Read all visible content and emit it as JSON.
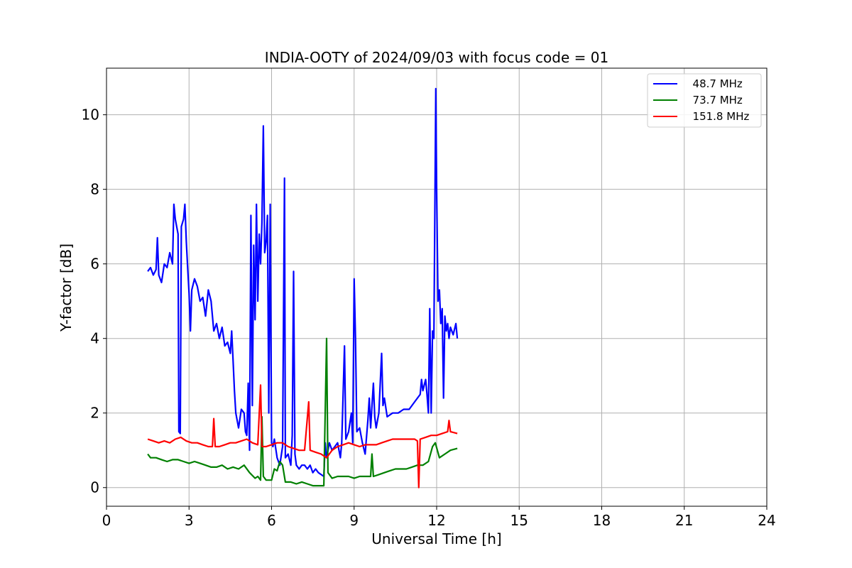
{
  "chart_data": {
    "type": "line",
    "title": "INDIA-OOTY of 2024/09/03 with focus code = 01",
    "xlabel": "Universal Time [h]",
    "ylabel": "Y-factor [dB]",
    "xlim": [
      0,
      24
    ],
    "ylim": [
      -0.5,
      11.25
    ],
    "xticks": [
      0,
      3,
      6,
      9,
      12,
      15,
      18,
      21,
      24
    ],
    "yticks": [
      0,
      2,
      4,
      6,
      8,
      10
    ],
    "grid": true,
    "legend_position": "top-right",
    "series": [
      {
        "name": "  48.7 MHz",
        "color": "#0000ff",
        "points": [
          [
            1.5,
            5.8
          ],
          [
            1.6,
            5.9
          ],
          [
            1.7,
            5.7
          ],
          [
            1.8,
            5.85
          ],
          [
            1.85,
            6.7
          ],
          [
            1.9,
            5.7
          ],
          [
            2.0,
            5.5
          ],
          [
            2.1,
            6.0
          ],
          [
            2.2,
            5.9
          ],
          [
            2.3,
            6.3
          ],
          [
            2.4,
            6.0
          ],
          [
            2.45,
            7.6
          ],
          [
            2.5,
            7.2
          ],
          [
            2.6,
            6.8
          ],
          [
            2.63,
            1.5
          ],
          [
            2.68,
            1.45
          ],
          [
            2.72,
            7.0
          ],
          [
            2.8,
            7.2
          ],
          [
            2.85,
            7.6
          ],
          [
            2.9,
            6.6
          ],
          [
            2.95,
            5.9
          ],
          [
            3.0,
            5.2
          ],
          [
            3.05,
            4.2
          ],
          [
            3.1,
            5.3
          ],
          [
            3.2,
            5.6
          ],
          [
            3.3,
            5.4
          ],
          [
            3.4,
            5.0
          ],
          [
            3.5,
            5.1
          ],
          [
            3.6,
            4.6
          ],
          [
            3.7,
            5.3
          ],
          [
            3.8,
            5.0
          ],
          [
            3.9,
            4.2
          ],
          [
            4.0,
            4.4
          ],
          [
            4.1,
            4.0
          ],
          [
            4.2,
            4.3
          ],
          [
            4.3,
            3.8
          ],
          [
            4.4,
            3.9
          ],
          [
            4.5,
            3.6
          ],
          [
            4.55,
            4.2
          ],
          [
            4.6,
            3.4
          ],
          [
            4.65,
            2.6
          ],
          [
            4.7,
            2.0
          ],
          [
            4.8,
            1.6
          ],
          [
            4.9,
            2.1
          ],
          [
            5.0,
            2.0
          ],
          [
            5.05,
            1.5
          ],
          [
            5.1,
            1.4
          ],
          [
            5.15,
            2.8
          ],
          [
            5.2,
            1.0
          ],
          [
            5.25,
            7.3
          ],
          [
            5.3,
            2.2
          ],
          [
            5.35,
            6.5
          ],
          [
            5.4,
            4.5
          ],
          [
            5.45,
            7.6
          ],
          [
            5.5,
            5.0
          ],
          [
            5.55,
            6.8
          ],
          [
            5.6,
            6.0
          ],
          [
            5.65,
            7.1
          ],
          [
            5.7,
            9.7
          ],
          [
            5.75,
            6.3
          ],
          [
            5.8,
            6.6
          ],
          [
            5.85,
            7.3
          ],
          [
            5.9,
            2.0
          ],
          [
            5.95,
            7.6
          ],
          [
            6.0,
            1.2
          ],
          [
            6.05,
            1.1
          ],
          [
            6.1,
            1.3
          ],
          [
            6.2,
            0.8
          ],
          [
            6.3,
            0.6
          ],
          [
            6.4,
            1.1
          ],
          [
            6.47,
            8.3
          ],
          [
            6.5,
            0.8
          ],
          [
            6.6,
            0.9
          ],
          [
            6.7,
            0.6
          ],
          [
            6.75,
            1.4
          ],
          [
            6.8,
            5.8
          ],
          [
            6.85,
            0.9
          ],
          [
            6.9,
            0.6
          ],
          [
            7.0,
            0.5
          ],
          [
            7.1,
            0.6
          ],
          [
            7.2,
            0.6
          ],
          [
            7.3,
            0.5
          ],
          [
            7.4,
            0.6
          ],
          [
            7.5,
            0.4
          ],
          [
            7.6,
            0.5
          ],
          [
            7.7,
            0.4
          ],
          [
            7.8,
            0.35
          ],
          [
            7.9,
            0.3
          ],
          [
            7.95,
            1.2
          ],
          [
            8.0,
            0.8
          ],
          [
            8.1,
            1.2
          ],
          [
            8.2,
            1.0
          ],
          [
            8.3,
            1.1
          ],
          [
            8.4,
            1.2
          ],
          [
            8.5,
            0.8
          ],
          [
            8.55,
            1.2
          ],
          [
            8.65,
            3.8
          ],
          [
            8.7,
            1.3
          ],
          [
            8.8,
            1.5
          ],
          [
            8.9,
            2.0
          ],
          [
            8.95,
            1.2
          ],
          [
            9.0,
            5.6
          ],
          [
            9.05,
            4.0
          ],
          [
            9.1,
            1.5
          ],
          [
            9.2,
            1.6
          ],
          [
            9.3,
            1.2
          ],
          [
            9.4,
            0.9
          ],
          [
            9.5,
            1.8
          ],
          [
            9.55,
            2.4
          ],
          [
            9.6,
            1.6
          ],
          [
            9.7,
            2.8
          ],
          [
            9.75,
            1.9
          ],
          [
            9.8,
            1.6
          ],
          [
            9.9,
            2.0
          ],
          [
            10.0,
            3.6
          ],
          [
            10.05,
            2.2
          ],
          [
            10.1,
            2.4
          ],
          [
            10.2,
            1.9
          ],
          [
            10.4,
            2.0
          ],
          [
            10.6,
            2.0
          ],
          [
            10.8,
            2.1
          ],
          [
            11.0,
            2.1
          ],
          [
            11.2,
            2.3
          ],
          [
            11.4,
            2.5
          ],
          [
            11.45,
            2.9
          ],
          [
            11.5,
            2.6
          ],
          [
            11.6,
            2.9
          ],
          [
            11.65,
            2.5
          ],
          [
            11.7,
            2.0
          ],
          [
            11.75,
            4.8
          ],
          [
            11.8,
            2.0
          ],
          [
            11.85,
            4.2
          ],
          [
            11.9,
            4.0
          ],
          [
            11.97,
            10.7
          ],
          [
            12.0,
            8.0
          ],
          [
            12.05,
            5.0
          ],
          [
            12.1,
            5.3
          ],
          [
            12.15,
            4.4
          ],
          [
            12.2,
            4.8
          ],
          [
            12.25,
            2.4
          ],
          [
            12.3,
            4.6
          ],
          [
            12.35,
            4.2
          ],
          [
            12.4,
            4.4
          ],
          [
            12.45,
            4.0
          ],
          [
            12.5,
            4.3
          ],
          [
            12.6,
            4.1
          ],
          [
            12.7,
            4.4
          ],
          [
            12.75,
            4.0
          ]
        ]
      },
      {
        "name": "  73.7 MHz",
        "color": "#008000",
        "points": [
          [
            1.5,
            0.9
          ],
          [
            1.6,
            0.8
          ],
          [
            1.8,
            0.8
          ],
          [
            2.0,
            0.75
          ],
          [
            2.2,
            0.7
          ],
          [
            2.4,
            0.75
          ],
          [
            2.6,
            0.75
          ],
          [
            2.8,
            0.7
          ],
          [
            3.0,
            0.65
          ],
          [
            3.2,
            0.7
          ],
          [
            3.4,
            0.65
          ],
          [
            3.6,
            0.6
          ],
          [
            3.8,
            0.55
          ],
          [
            4.0,
            0.55
          ],
          [
            4.2,
            0.6
          ],
          [
            4.4,
            0.5
          ],
          [
            4.6,
            0.55
          ],
          [
            4.8,
            0.5
          ],
          [
            5.0,
            0.6
          ],
          [
            5.2,
            0.4
          ],
          [
            5.4,
            0.25
          ],
          [
            5.5,
            0.3
          ],
          [
            5.6,
            0.2
          ],
          [
            5.65,
            1.9
          ],
          [
            5.7,
            0.3
          ],
          [
            5.8,
            0.2
          ],
          [
            6.0,
            0.2
          ],
          [
            6.1,
            0.5
          ],
          [
            6.2,
            0.45
          ],
          [
            6.3,
            0.7
          ],
          [
            6.4,
            0.6
          ],
          [
            6.5,
            0.15
          ],
          [
            6.7,
            0.15
          ],
          [
            6.9,
            0.1
          ],
          [
            7.1,
            0.15
          ],
          [
            7.3,
            0.1
          ],
          [
            7.5,
            0.05
          ],
          [
            7.7,
            0.05
          ],
          [
            7.9,
            0.05
          ],
          [
            8.0,
            4.0
          ],
          [
            8.05,
            0.4
          ],
          [
            8.2,
            0.25
          ],
          [
            8.4,
            0.3
          ],
          [
            8.6,
            0.3
          ],
          [
            8.8,
            0.3
          ],
          [
            9.0,
            0.25
          ],
          [
            9.2,
            0.3
          ],
          [
            9.4,
            0.3
          ],
          [
            9.6,
            0.3
          ],
          [
            9.65,
            0.9
          ],
          [
            9.7,
            0.3
          ],
          [
            9.9,
            0.35
          ],
          [
            10.1,
            0.4
          ],
          [
            10.3,
            0.45
          ],
          [
            10.5,
            0.5
          ],
          [
            10.7,
            0.5
          ],
          [
            10.9,
            0.5
          ],
          [
            11.1,
            0.55
          ],
          [
            11.3,
            0.6
          ],
          [
            11.5,
            0.6
          ],
          [
            11.7,
            0.7
          ],
          [
            11.85,
            1.1
          ],
          [
            11.95,
            1.2
          ],
          [
            12.1,
            0.8
          ],
          [
            12.3,
            0.9
          ],
          [
            12.5,
            1.0
          ],
          [
            12.75,
            1.05
          ]
        ]
      },
      {
        "name": "  151.8 MHz",
        "color": "#ff0000",
        "points": [
          [
            1.5,
            1.3
          ],
          [
            1.7,
            1.25
          ],
          [
            1.9,
            1.2
          ],
          [
            2.1,
            1.25
          ],
          [
            2.3,
            1.2
          ],
          [
            2.5,
            1.3
          ],
          [
            2.7,
            1.35
          ],
          [
            2.9,
            1.25
          ],
          [
            3.1,
            1.2
          ],
          [
            3.3,
            1.2
          ],
          [
            3.5,
            1.15
          ],
          [
            3.7,
            1.1
          ],
          [
            3.85,
            1.1
          ],
          [
            3.9,
            1.85
          ],
          [
            3.95,
            1.1
          ],
          [
            4.1,
            1.1
          ],
          [
            4.3,
            1.15
          ],
          [
            4.5,
            1.2
          ],
          [
            4.7,
            1.2
          ],
          [
            4.9,
            1.25
          ],
          [
            5.1,
            1.3
          ],
          [
            5.3,
            1.2
          ],
          [
            5.5,
            1.15
          ],
          [
            5.6,
            2.75
          ],
          [
            5.65,
            1.1
          ],
          [
            5.8,
            1.1
          ],
          [
            6.0,
            1.15
          ],
          [
            6.2,
            1.2
          ],
          [
            6.4,
            1.2
          ],
          [
            6.6,
            1.1
          ],
          [
            6.8,
            1.05
          ],
          [
            7.0,
            1.0
          ],
          [
            7.2,
            1.0
          ],
          [
            7.35,
            2.3
          ],
          [
            7.4,
            1.0
          ],
          [
            7.6,
            0.95
          ],
          [
            7.8,
            0.9
          ],
          [
            7.9,
            0.85
          ],
          [
            8.0,
            0.8
          ],
          [
            8.2,
            1.0
          ],
          [
            8.4,
            1.1
          ],
          [
            8.6,
            1.15
          ],
          [
            8.8,
            1.2
          ],
          [
            9.0,
            1.15
          ],
          [
            9.2,
            1.1
          ],
          [
            9.4,
            1.15
          ],
          [
            9.6,
            1.15
          ],
          [
            9.8,
            1.15
          ],
          [
            10.0,
            1.2
          ],
          [
            10.2,
            1.25
          ],
          [
            10.4,
            1.3
          ],
          [
            10.6,
            1.3
          ],
          [
            10.8,
            1.3
          ],
          [
            11.0,
            1.3
          ],
          [
            11.2,
            1.3
          ],
          [
            11.3,
            1.25
          ],
          [
            11.35,
            0.0
          ],
          [
            11.4,
            1.3
          ],
          [
            11.6,
            1.35
          ],
          [
            11.8,
            1.4
          ],
          [
            12.0,
            1.4
          ],
          [
            12.2,
            1.45
          ],
          [
            12.4,
            1.5
          ],
          [
            12.45,
            1.8
          ],
          [
            12.5,
            1.5
          ],
          [
            12.75,
            1.45
          ]
        ]
      }
    ]
  }
}
